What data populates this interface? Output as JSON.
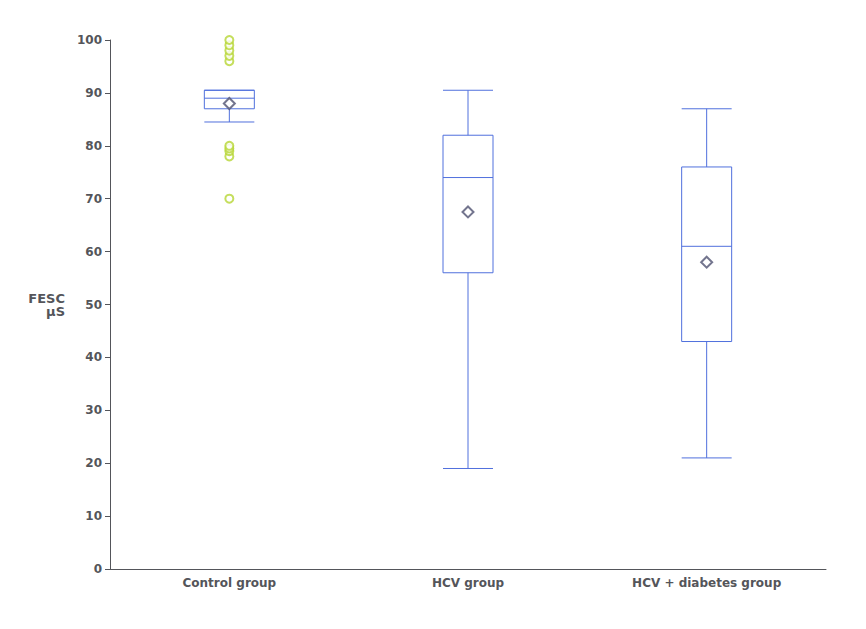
{
  "chart_data": {
    "type": "boxplot",
    "categories": [
      "Control group",
      "HCV group",
      "HCV + diabetes group"
    ],
    "values": [
      [
        84.5,
        87.0,
        89.0,
        90.5,
        90.5
      ],
      [
        19.0,
        56.0,
        74.0,
        82.0,
        90.5
      ],
      [
        21.0,
        43.0,
        61.0,
        76.0,
        87.0
      ]
    ],
    "means": [
      88.0,
      67.5,
      58.0
    ],
    "fliers": [
      [
        70,
        78,
        79,
        79.5,
        80,
        96,
        97,
        98,
        99,
        100
      ],
      [],
      []
    ],
    "ylabel": "FESC\nµS",
    "ylim": [
      0,
      100
    ],
    "yticks": [
      0,
      10,
      20,
      30,
      40,
      50,
      60,
      70,
      80,
      90,
      100
    ],
    "grid": false
  }
}
